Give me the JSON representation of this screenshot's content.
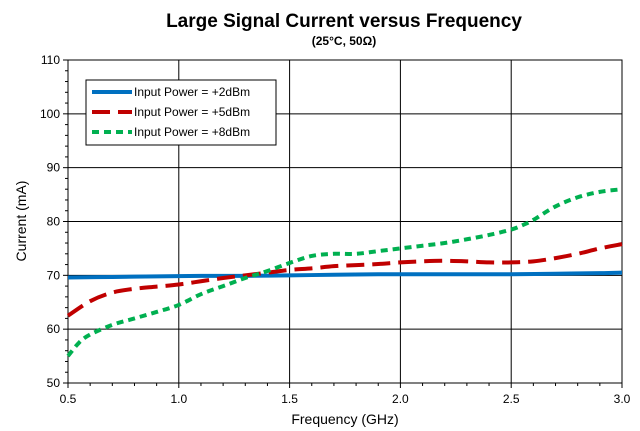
{
  "chart_data": {
    "type": "line",
    "title": "Large Signal Current versus Frequency",
    "subtitle": "(25°C, 50Ω)",
    "xlabel": "Frequency (GHz)",
    "ylabel": "Current (mA)",
    "xlim": [
      0.5,
      3.0
    ],
    "ylim": [
      50,
      110
    ],
    "xticks": [
      0.5,
      1.0,
      1.5,
      2.0,
      2.5,
      3.0
    ],
    "xtick_labels": [
      "0.5",
      "1.0",
      "1.5",
      "2.0",
      "2.5",
      "3.0"
    ],
    "yticks": [
      50,
      60,
      70,
      80,
      90,
      100,
      110
    ],
    "ytick_labels": [
      "50",
      "60",
      "70",
      "80",
      "90",
      "100",
      "110"
    ],
    "grid": true,
    "legend_position": "top-left",
    "series": [
      {
        "name": "Input Power = +2dBm",
        "color": "#0070C0",
        "style": "solid",
        "x": [
          0.5,
          0.7,
          0.9,
          1.1,
          1.3,
          1.5,
          1.7,
          1.9,
          2.1,
          2.3,
          2.5,
          2.7,
          2.9,
          3.0
        ],
        "y": [
          69.6,
          69.7,
          69.8,
          69.9,
          69.9,
          70.0,
          70.1,
          70.2,
          70.2,
          70.2,
          70.2,
          70.3,
          70.4,
          70.5
        ]
      },
      {
        "name": "Input Power = +5dBm",
        "color": "#C00000",
        "style": "dash",
        "x": [
          0.5,
          0.6,
          0.7,
          0.8,
          0.9,
          1.0,
          1.1,
          1.2,
          1.3,
          1.4,
          1.5,
          1.6,
          1.7,
          1.8,
          1.9,
          2.0,
          2.1,
          2.2,
          2.3,
          2.4,
          2.5,
          2.6,
          2.7,
          2.8,
          2.9,
          3.0
        ],
        "y": [
          62.5,
          65.2,
          66.8,
          67.5,
          67.9,
          68.3,
          68.9,
          69.5,
          70.0,
          70.5,
          71.0,
          71.3,
          71.7,
          71.9,
          72.1,
          72.4,
          72.6,
          72.7,
          72.6,
          72.4,
          72.4,
          72.6,
          73.2,
          74.0,
          75.0,
          75.8
        ]
      },
      {
        "name": "Input Power = +8dBm",
        "color": "#00B050",
        "style": "dot",
        "x": [
          0.5,
          0.55,
          0.6,
          0.7,
          0.8,
          0.9,
          1.0,
          1.1,
          1.2,
          1.3,
          1.4,
          1.5,
          1.6,
          1.7,
          1.8,
          1.9,
          2.0,
          2.1,
          2.2,
          2.3,
          2.4,
          2.5,
          2.55,
          2.6,
          2.7,
          2.8,
          2.9,
          3.0
        ],
        "y": [
          55.0,
          57.5,
          59.0,
          60.8,
          62.0,
          63.2,
          64.5,
          66.5,
          68.0,
          69.5,
          70.8,
          72.3,
          73.6,
          74.0,
          74.0,
          74.5,
          75.0,
          75.5,
          76.0,
          76.7,
          77.5,
          78.5,
          79.3,
          80.3,
          82.8,
          84.5,
          85.5,
          86.0
        ]
      }
    ]
  }
}
